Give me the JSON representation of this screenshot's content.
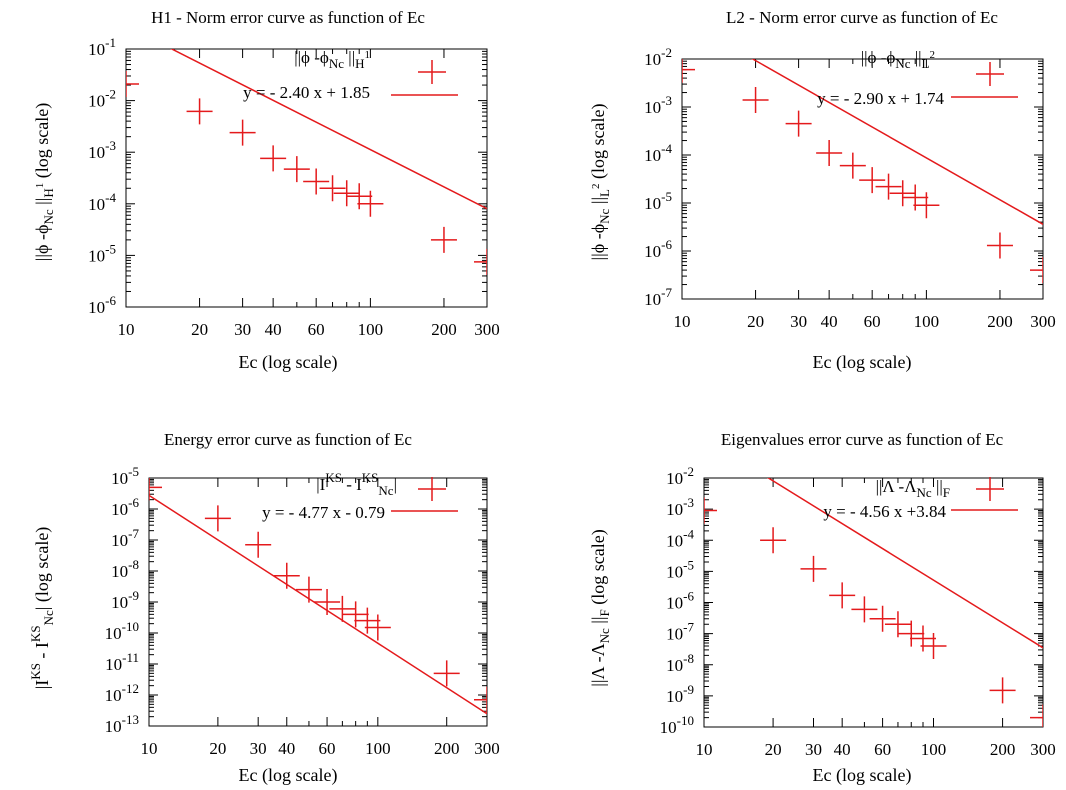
{
  "chart_data": [
    {
      "type": "scatter",
      "title": "H1 - Norm error curve as function of Ec",
      "xlabel": "Ec (log scale)",
      "ylabel": "||ϕ -ϕNc ||H¹ (log scale)",
      "xscale": "log",
      "yscale": "log",
      "xlim": [
        10,
        300
      ],
      "ylim": [
        1e-06,
        0.1
      ],
      "x_ticks": [
        10,
        20,
        30,
        40,
        60,
        100,
        200,
        300
      ],
      "x_tick_labels": [
        "10",
        "20",
        "30",
        "40",
        "60",
        "100",
        "200",
        "300"
      ],
      "y_tick_exponents": [
        "-6",
        "-5",
        "-4",
        "-3",
        "-2",
        "-1"
      ],
      "grid": false,
      "legend_position": "top-right",
      "series": [
        {
          "kind": "points",
          "x": [
            10,
            20,
            30,
            40,
            50,
            60,
            70,
            80,
            90,
            100,
            200,
            300
          ],
          "y": [
            0.021,
            0.0062,
            0.0024,
            0.00076,
            0.00047,
            0.00027,
            0.0002,
            0.00016,
            0.00014,
            0.0001,
            2e-05,
            7.5e-06
          ]
        },
        {
          "kind": "line",
          "name": "y = - 2.40 x + 1.85",
          "slope": -2.4,
          "intercept": 1.85
        }
      ],
      "color": "#e41a1c"
    },
    {
      "type": "scatter",
      "title": "L2 - Norm error curve as function of Ec",
      "xlabel": "Ec (log scale)",
      "ylabel": "||ϕ -ϕNc ||L² (log scale)",
      "xscale": "log",
      "yscale": "log",
      "xlim": [
        10,
        300
      ],
      "ylim": [
        1e-07,
        0.01
      ],
      "x_ticks": [
        10,
        20,
        30,
        40,
        60,
        100,
        200,
        300
      ],
      "x_tick_labels": [
        "10",
        "20",
        "30",
        "40",
        "60",
        "100",
        "200",
        "300"
      ],
      "y_tick_exponents": [
        "-7",
        "-6",
        "-5",
        "-4",
        "-3",
        "-2"
      ],
      "grid": false,
      "legend_position": "top-right",
      "series": [
        {
          "kind": "points",
          "x": [
            10,
            20,
            30,
            40,
            50,
            60,
            70,
            80,
            90,
            100,
            200,
            300
          ],
          "y": [
            0.006,
            0.0014,
            0.00045,
            0.00011,
            6e-05,
            3e-05,
            2.2e-05,
            1.6e-05,
            1.3e-05,
            9e-06,
            1.3e-06,
            4e-07
          ]
        },
        {
          "kind": "line",
          "name": "y = - 2.90 x + 1.74",
          "slope": -2.9,
          "intercept": 1.74
        }
      ],
      "color": "#e41a1c"
    },
    {
      "type": "scatter",
      "title": "Energy error curve as function of Ec",
      "xlabel": "Ec (log scale)",
      "ylabel": "|IKS - IKSNc| (log scale)",
      "xscale": "log",
      "yscale": "log",
      "xlim": [
        10,
        300
      ],
      "ylim": [
        1e-13,
        1e-05
      ],
      "x_ticks": [
        10,
        20,
        30,
        40,
        60,
        100,
        200,
        300
      ],
      "x_tick_labels": [
        "10",
        "20",
        "30",
        "40",
        "60",
        "100",
        "200",
        "300"
      ],
      "y_tick_exponents": [
        "-13",
        "-12",
        "-11",
        "-10",
        "-9",
        "-8",
        "-7",
        "-6",
        "-5"
      ],
      "grid": false,
      "legend_position": "top-right",
      "series": [
        {
          "kind": "points",
          "x": [
            10,
            20,
            30,
            40,
            50,
            60,
            70,
            80,
            90,
            100,
            200,
            300
          ],
          "y": [
            5e-06,
            5e-07,
            7e-08,
            7e-09,
            2.5e-09,
            1e-09,
            6e-10,
            4e-10,
            2.5e-10,
            1.5e-10,
            5e-12,
            7e-13
          ]
        },
        {
          "kind": "line",
          "name": "y = - 4.77 x - 0.79",
          "slope": -4.77,
          "intercept": -0.79
        }
      ],
      "color": "#e41a1c"
    },
    {
      "type": "scatter",
      "title": "Eigenvalues error curve as function of Ec",
      "xlabel": "Ec (log scale)",
      "ylabel": "||Λ -ΛNc ||F (log scale)",
      "xscale": "log",
      "yscale": "log",
      "xlim": [
        10,
        300
      ],
      "ylim": [
        1e-10,
        0.01
      ],
      "x_ticks": [
        10,
        20,
        30,
        40,
        60,
        100,
        200,
        300
      ],
      "x_tick_labels": [
        "10",
        "20",
        "30",
        "40",
        "60",
        "100",
        "200",
        "300"
      ],
      "y_tick_exponents": [
        "-10",
        "-9",
        "-8",
        "-7",
        "-6",
        "-5",
        "-4",
        "-3",
        "-2"
      ],
      "grid": false,
      "legend_position": "top-right",
      "series": [
        {
          "kind": "points",
          "x": [
            10,
            20,
            30,
            40,
            50,
            60,
            70,
            80,
            90,
            100,
            200,
            300
          ],
          "y": [
            0.0009,
            0.0001,
            1.2e-05,
            1.7e-06,
            6e-07,
            3e-07,
            2e-07,
            1e-07,
            7e-08,
            4e-08,
            1.5e-09,
            2e-10
          ]
        },
        {
          "kind": "line",
          "name": "y = - 4.56 x +3.84",
          "slope": -4.56,
          "intercept": 3.84
        }
      ],
      "color": "#e41a1c"
    }
  ]
}
